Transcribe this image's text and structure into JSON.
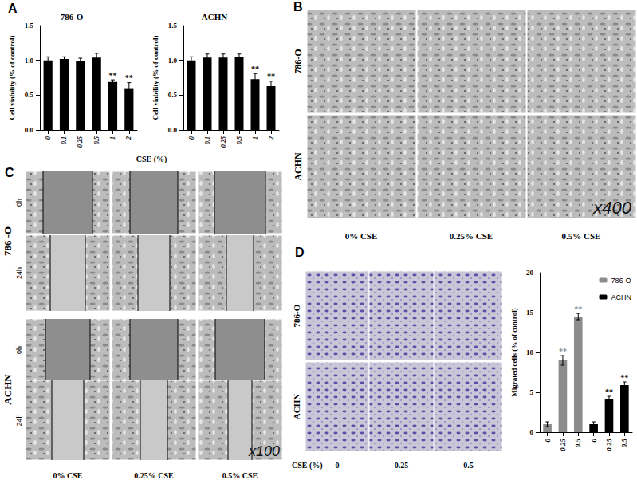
{
  "chart_data": [
    {
      "type": "bar",
      "panel": "A",
      "title": "786-O",
      "categories": [
        "0",
        "0.1",
        "0.25",
        "0.5",
        "1",
        "2"
      ],
      "values": [
        1.0,
        1.02,
        0.99,
        1.04,
        0.69,
        0.6
      ],
      "errors": [
        0.05,
        0.03,
        0.04,
        0.06,
        0.03,
        0.08
      ],
      "significance": [
        null,
        null,
        null,
        null,
        "**",
        "**"
      ],
      "color": "#000000",
      "y_label": "Cell viability (% of control)",
      "ylim": [
        0,
        1.5
      ],
      "yticks": [
        {
          "value": 0,
          "label": "0.0"
        },
        {
          "value": 0.5,
          "label": "0.5"
        },
        {
          "value": 1,
          "label": "1.0"
        },
        {
          "value": 1.5,
          "label": "1.5"
        }
      ],
      "grid": false
    },
    {
      "type": "bar",
      "panel": "A",
      "title": "ACHN",
      "categories": [
        "0",
        "0.1",
        "0.25",
        "0.5",
        "1",
        "2"
      ],
      "values": [
        1.0,
        1.04,
        1.04,
        1.05,
        0.73,
        0.63
      ],
      "errors": [
        0.05,
        0.05,
        0.05,
        0.04,
        0.08,
        0.07
      ],
      "significance": [
        null,
        null,
        null,
        null,
        "**",
        "**"
      ],
      "color": "#000000",
      "y_label": "Cell viability (% of control)",
      "ylim": [
        0,
        1.5
      ],
      "yticks": [
        {
          "value": 0,
          "label": "0.0"
        },
        {
          "value": 0.5,
          "label": "0.5"
        },
        {
          "value": 1,
          "label": "1.0"
        },
        {
          "value": 1.5,
          "label": "1.5"
        }
      ],
      "grid": false
    },
    {
      "type": "bar",
      "panel": "D",
      "categories": [
        "0",
        "0.25",
        "0.5",
        "0",
        "0.25",
        "0.5"
      ],
      "series": [
        {
          "name": "786-O",
          "color": "#8c8c8c",
          "values": [
            1,
            9,
            14.5,
            null,
            null,
            null
          ],
          "errors": [
            0.3,
            0.6,
            0.4,
            null,
            null,
            null
          ],
          "significance": [
            null,
            "**",
            "**",
            null,
            null,
            null
          ]
        },
        {
          "name": "ACHN",
          "color": "#000000",
          "values": [
            null,
            null,
            null,
            1,
            4.2,
            5.9
          ],
          "errors": [
            null,
            null,
            null,
            0.3,
            0.3,
            0.4
          ],
          "significance": [
            null,
            null,
            null,
            null,
            "**",
            "**"
          ]
        }
      ],
      "x_label": "CSE (%)",
      "y_label": "Migrated cells (% of control)",
      "ylim": [
        0,
        20
      ],
      "yticks": [
        0,
        5,
        10,
        15,
        20
      ],
      "legend": "upper right",
      "grid": false
    }
  ],
  "figure": {
    "A": {
      "label": "A",
      "x_label": "CSE (%)"
    },
    "B": {
      "label": "B",
      "rows": [
        "786-O",
        "ACHN"
      ],
      "columns": [
        "0% CSE",
        "0.25% CSE",
        "0.5% CSE"
      ],
      "magnification": "x400"
    },
    "C": {
      "label": "C",
      "row_groups": [
        {
          "label": "786 -O",
          "rows": [
            "0h",
            "24h"
          ]
        },
        {
          "label": "ACHN",
          "rows": [
            "0h",
            "24h"
          ]
        }
      ],
      "columns": [
        "0% CSE",
        "0.25% CSE",
        "0.5% CSE"
      ],
      "magnification": "x100"
    },
    "D": {
      "label": "D",
      "rows": [
        "786-O",
        "ACHN"
      ],
      "column_title": "CSE (%)",
      "columns": [
        "0",
        "0.25",
        "0.5"
      ]
    }
  }
}
